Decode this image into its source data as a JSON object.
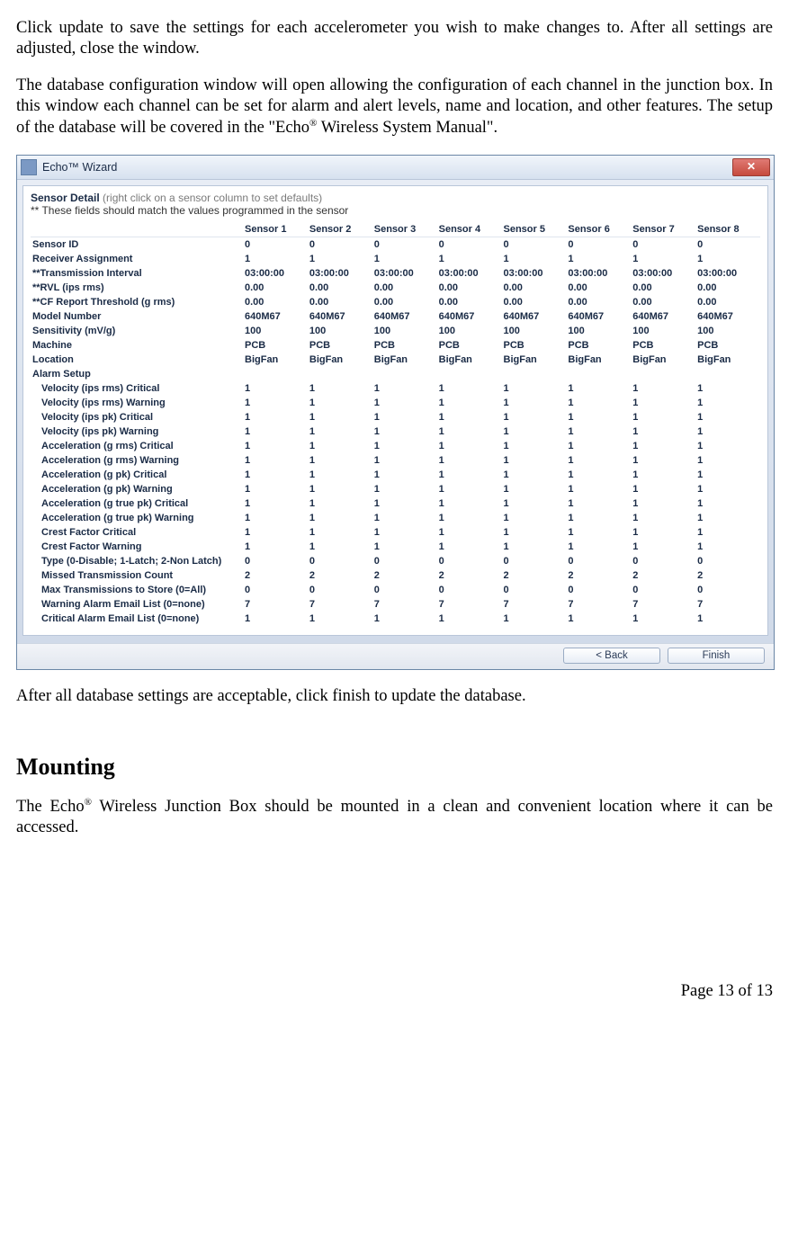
{
  "intro_para1": "Click update to save the settings for each accelerometer you wish to make changes to.  After all settings are adjusted, close the window.",
  "intro_para2_a": "The database configuration window will open allowing the configuration of each channel in the junction box.  In this window each channel can be set for alarm and alert levels, name and location, and other features.  The setup of the database will be covered in the \"Echo",
  "intro_para2_b": " Wireless System Manual\".",
  "after_para": "After all database settings are acceptable, click finish to update the database.",
  "section_heading": "Mounting",
  "mount_para_a": "The Echo",
  "mount_para_b": " Wireless Junction Box should be mounted in a clean and convenient location where it can be accessed.",
  "page_footer": "Page 13 of 13",
  "window": {
    "title": "Echo™  Wizard",
    "close_glyph": "✕",
    "sensor_detail_label": "Sensor Detail",
    "sensor_detail_hint": " (right click on a sensor column to set defaults)",
    "sensor_detail_note": "** These fields should match the values programmed in the sensor",
    "columns": [
      "",
      "Sensor 1",
      "Sensor 2",
      "Sensor 3",
      "Sensor 4",
      "Sensor 5",
      "Sensor 6",
      "Sensor 7",
      "Sensor 8"
    ],
    "section1": [
      {
        "label": "Sensor ID",
        "vals": [
          "0",
          "0",
          "0",
          "0",
          "0",
          "0",
          "0",
          "0"
        ]
      },
      {
        "label": "Receiver Assignment",
        "vals": [
          "1",
          "1",
          "1",
          "1",
          "1",
          "1",
          "1",
          "1"
        ]
      },
      {
        "label": "**Transmission Interval",
        "vals": [
          "03:00:00",
          "03:00:00",
          "03:00:00",
          "03:00:00",
          "03:00:00",
          "03:00:00",
          "03:00:00",
          "03:00:00"
        ]
      },
      {
        "label": "**RVL (ips rms)",
        "vals": [
          "0.00",
          "0.00",
          "0.00",
          "0.00",
          "0.00",
          "0.00",
          "0.00",
          "0.00"
        ]
      },
      {
        "label": "**CF Report Threshold (g rms)",
        "vals": [
          "0.00",
          "0.00",
          "0.00",
          "0.00",
          "0.00",
          "0.00",
          "0.00",
          "0.00"
        ]
      },
      {
        "label": "Model Number",
        "vals": [
          "640M67",
          "640M67",
          "640M67",
          "640M67",
          "640M67",
          "640M67",
          "640M67",
          "640M67"
        ]
      },
      {
        "label": "Sensitivity (mV/g)",
        "vals": [
          "100",
          "100",
          "100",
          "100",
          "100",
          "100",
          "100",
          "100"
        ]
      },
      {
        "label": "Machine",
        "vals": [
          "PCB",
          "PCB",
          "PCB",
          "PCB",
          "PCB",
          "PCB",
          "PCB",
          "PCB"
        ]
      },
      {
        "label": "Location",
        "vals": [
          "BigFan",
          "BigFan",
          "BigFan",
          "BigFan",
          "BigFan",
          "BigFan",
          "BigFan",
          "BigFan"
        ]
      }
    ],
    "alarm_label": "Alarm Setup",
    "section2": [
      {
        "label": "Velocity (ips rms) Critical",
        "vals": [
          "1",
          "1",
          "1",
          "1",
          "1",
          "1",
          "1",
          "1"
        ]
      },
      {
        "label": "Velocity (ips rms) Warning",
        "vals": [
          "1",
          "1",
          "1",
          "1",
          "1",
          "1",
          "1",
          "1"
        ]
      },
      {
        "label": "Velocity (ips pk) Critical",
        "vals": [
          "1",
          "1",
          "1",
          "1",
          "1",
          "1",
          "1",
          "1"
        ]
      },
      {
        "label": "Velocity (ips pk) Warning",
        "vals": [
          "1",
          "1",
          "1",
          "1",
          "1",
          "1",
          "1",
          "1"
        ]
      },
      {
        "label": "Acceleration (g rms) Critical",
        "vals": [
          "1",
          "1",
          "1",
          "1",
          "1",
          "1",
          "1",
          "1"
        ]
      },
      {
        "label": "Acceleration (g rms) Warning",
        "vals": [
          "1",
          "1",
          "1",
          "1",
          "1",
          "1",
          "1",
          "1"
        ]
      },
      {
        "label": "Acceleration (g pk) Critical",
        "vals": [
          "1",
          "1",
          "1",
          "1",
          "1",
          "1",
          "1",
          "1"
        ]
      },
      {
        "label": "Acceleration (g pk) Warning",
        "vals": [
          "1",
          "1",
          "1",
          "1",
          "1",
          "1",
          "1",
          "1"
        ]
      },
      {
        "label": "Acceleration (g true pk) Critical",
        "vals": [
          "1",
          "1",
          "1",
          "1",
          "1",
          "1",
          "1",
          "1"
        ]
      },
      {
        "label": "Acceleration (g true pk) Warning",
        "vals": [
          "1",
          "1",
          "1",
          "1",
          "1",
          "1",
          "1",
          "1"
        ]
      },
      {
        "label": "Crest Factor Critical",
        "vals": [
          "1",
          "1",
          "1",
          "1",
          "1",
          "1",
          "1",
          "1"
        ]
      },
      {
        "label": "Crest Factor Warning",
        "vals": [
          "1",
          "1",
          "1",
          "1",
          "1",
          "1",
          "1",
          "1"
        ]
      },
      {
        "label": "Type (0-Disable; 1-Latch; 2-Non Latch)",
        "vals": [
          "0",
          "0",
          "0",
          "0",
          "0",
          "0",
          "0",
          "0"
        ]
      },
      {
        "label": "Missed Transmission Count",
        "vals": [
          "2",
          "2",
          "2",
          "2",
          "2",
          "2",
          "2",
          "2"
        ]
      },
      {
        "label": "Max Transmissions to Store (0=All)",
        "vals": [
          "0",
          "0",
          "0",
          "0",
          "0",
          "0",
          "0",
          "0"
        ]
      },
      {
        "label": "Warning Alarm Email List (0=none)",
        "vals": [
          "7",
          "7",
          "7",
          "7",
          "7",
          "7",
          "7",
          "7"
        ]
      },
      {
        "label": "Critical Alarm Email List (0=none)",
        "vals": [
          "1",
          "1",
          "1",
          "1",
          "1",
          "1",
          "1",
          "1"
        ]
      }
    ],
    "back_btn": "<  Back",
    "finish_btn": "Finish"
  }
}
